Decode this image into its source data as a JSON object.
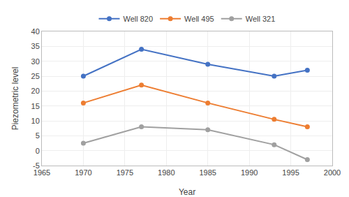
{
  "chart_data": {
    "type": "line",
    "x": [
      1970,
      1977,
      1985,
      1993,
      1997
    ],
    "series": [
      {
        "name": "Well 820",
        "color": "#4472C4",
        "values": [
          25,
          34,
          29,
          25,
          27
        ]
      },
      {
        "name": "Well 495",
        "color": "#ED7D31",
        "values": [
          16,
          22,
          16,
          10.5,
          8
        ]
      },
      {
        "name": "Well 321",
        "color": "#A0A0A0",
        "values": [
          2.5,
          8,
          7,
          2,
          -3
        ]
      }
    ],
    "xlabel": "Year",
    "ylabel": "Piezometric level",
    "xlim": [
      1965,
      2000
    ],
    "ylim": [
      -5,
      40
    ],
    "xticks": [
      1965,
      1970,
      1975,
      1980,
      1985,
      1990,
      1995,
      2000
    ],
    "yticks": [
      -5,
      0,
      5,
      10,
      15,
      20,
      25,
      30,
      35,
      40
    ],
    "grid": true,
    "legend": "top",
    "marker": "circle"
  }
}
